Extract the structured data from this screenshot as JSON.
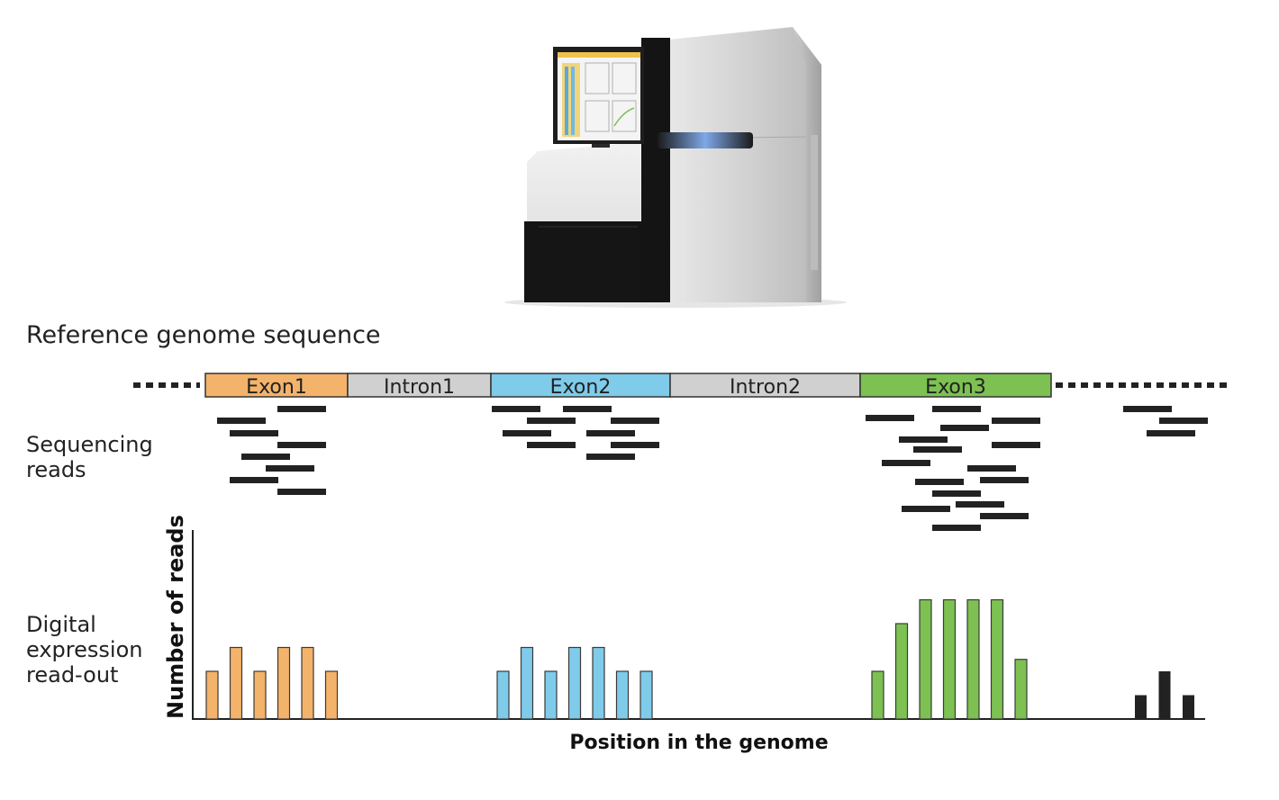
{
  "labels": {
    "reference_title": "Reference genome sequence",
    "sequencing_reads_line1": "Sequencing",
    "sequencing_reads_line2": "reads",
    "digital_line1": "Digital",
    "digital_line2": "expression",
    "digital_line3": "read-out",
    "y_axis": "Number of reads",
    "x_axis": "Position in the genome"
  },
  "genome_segments": [
    {
      "label": "Exon1",
      "kind": "exon",
      "color": "#F4B36A"
    },
    {
      "label": "Intron1",
      "kind": "intron",
      "color": "#D0D0D0"
    },
    {
      "label": "Exon2",
      "kind": "exon",
      "color": "#7FCBEA"
    },
    {
      "label": "Intron2",
      "kind": "intron",
      "color": "#D0D0D0"
    },
    {
      "label": "Exon3",
      "kind": "exon",
      "color": "#7CC151"
    }
  ],
  "colors": {
    "exon1": "#F4B36A",
    "exon2": "#7FCBEA",
    "exon3": "#7CC151",
    "intergenic": "#222222",
    "reads": "#222222"
  },
  "chart_data": {
    "type": "bar",
    "xlabel": "Position in the genome",
    "ylabel": "Number of reads",
    "groups": [
      {
        "region": "Exon1",
        "values": [
          2,
          3,
          2,
          3,
          3,
          2
        ]
      },
      {
        "region": "Exon2",
        "values": [
          2,
          3,
          2,
          3,
          3,
          2,
          2
        ]
      },
      {
        "region": "Exon3",
        "values": [
          2,
          4,
          5,
          5,
          5,
          5,
          2.5
        ]
      },
      {
        "region": "",
        "values": [
          1,
          2,
          1
        ]
      }
    ]
  },
  "machine_icon": "sequencer-machine"
}
